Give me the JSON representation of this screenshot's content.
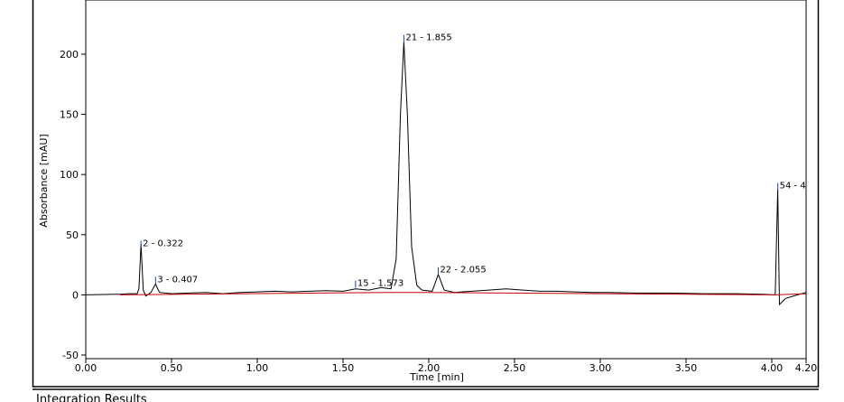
{
  "chart_data": {
    "type": "line",
    "xlabel": "Time [min]",
    "ylabel": "Absorbance [mAU]",
    "footer": "Integration Results",
    "xlim": [
      0,
      4.2
    ],
    "ylim": [
      -53,
      245
    ],
    "xticks": [
      {
        "value": 0,
        "label": "0.00"
      },
      {
        "value": 0.5,
        "label": "0.50"
      },
      {
        "value": 1,
        "label": "1.00"
      },
      {
        "value": 1.5,
        "label": "1.50"
      },
      {
        "value": 2,
        "label": "2.00"
      },
      {
        "value": 2.5,
        "label": "2.50"
      },
      {
        "value": 3,
        "label": "3.00"
      },
      {
        "value": 3.5,
        "label": "3.50"
      },
      {
        "value": 4,
        "label": "4.00"
      },
      {
        "value": 4.2,
        "label": "4.20"
      }
    ],
    "yticks": [
      -50,
      0,
      50,
      100,
      150,
      200
    ],
    "series": [
      {
        "color": "#000000",
        "x": [
          0,
          0.2,
          0.25,
          0.3,
          0.31,
          0.322,
          0.335,
          0.35,
          0.38,
          0.407,
          0.43,
          0.5,
          0.6,
          0.7,
          0.8,
          0.9,
          1.0,
          1.1,
          1.2,
          1.3,
          1.4,
          1.5,
          1.573,
          1.65,
          1.722,
          1.78,
          1.81,
          1.835,
          1.855,
          1.875,
          1.9,
          1.93,
          1.96,
          2.02,
          2.055,
          2.09,
          2.15,
          2.25,
          2.35,
          2.45,
          2.55,
          2.65,
          2.75,
          2.85,
          2.95,
          3.05,
          3.2,
          3.4,
          3.6,
          3.8,
          3.95,
          4.02,
          4.035,
          4.045,
          4.08,
          4.15,
          4.2
        ],
        "values": [
          0,
          0.5,
          1,
          1,
          5,
          42,
          4,
          -1,
          2,
          9,
          2,
          1,
          1.5,
          2,
          1,
          2,
          2.5,
          3,
          2.5,
          3,
          3.5,
          3,
          5,
          4,
          6,
          5,
          30,
          150,
          210,
          150,
          40,
          8,
          4,
          3,
          17,
          4,
          2,
          3,
          4,
          5,
          4,
          3,
          3,
          2.5,
          2,
          2,
          1.5,
          1.5,
          1,
          1,
          0.5,
          0,
          88,
          -8,
          -3,
          0,
          2
        ]
      },
      {
        "color": "#cc0000",
        "x": [
          0.2,
          1.78,
          1.96,
          4.02,
          4.2
        ],
        "values": [
          0,
          2,
          2,
          0,
          1
        ]
      }
    ],
    "annotations": [
      {
        "text": "2 - 0.322",
        "x": 0.322,
        "y": 42
      },
      {
        "text": "3 - 0.407",
        "x": 0.407,
        "y": 12
      },
      {
        "text": "15 - 1.573",
        "x": 1.573,
        "y": 9
      },
      {
        "text": "21 - 1.855",
        "x": 1.855,
        "y": 213
      },
      {
        "text": "22 - 2.055",
        "x": 2.055,
        "y": 20
      },
      {
        "text": "54 - 4",
        "x": 4.035,
        "y": 90
      }
    ]
  }
}
